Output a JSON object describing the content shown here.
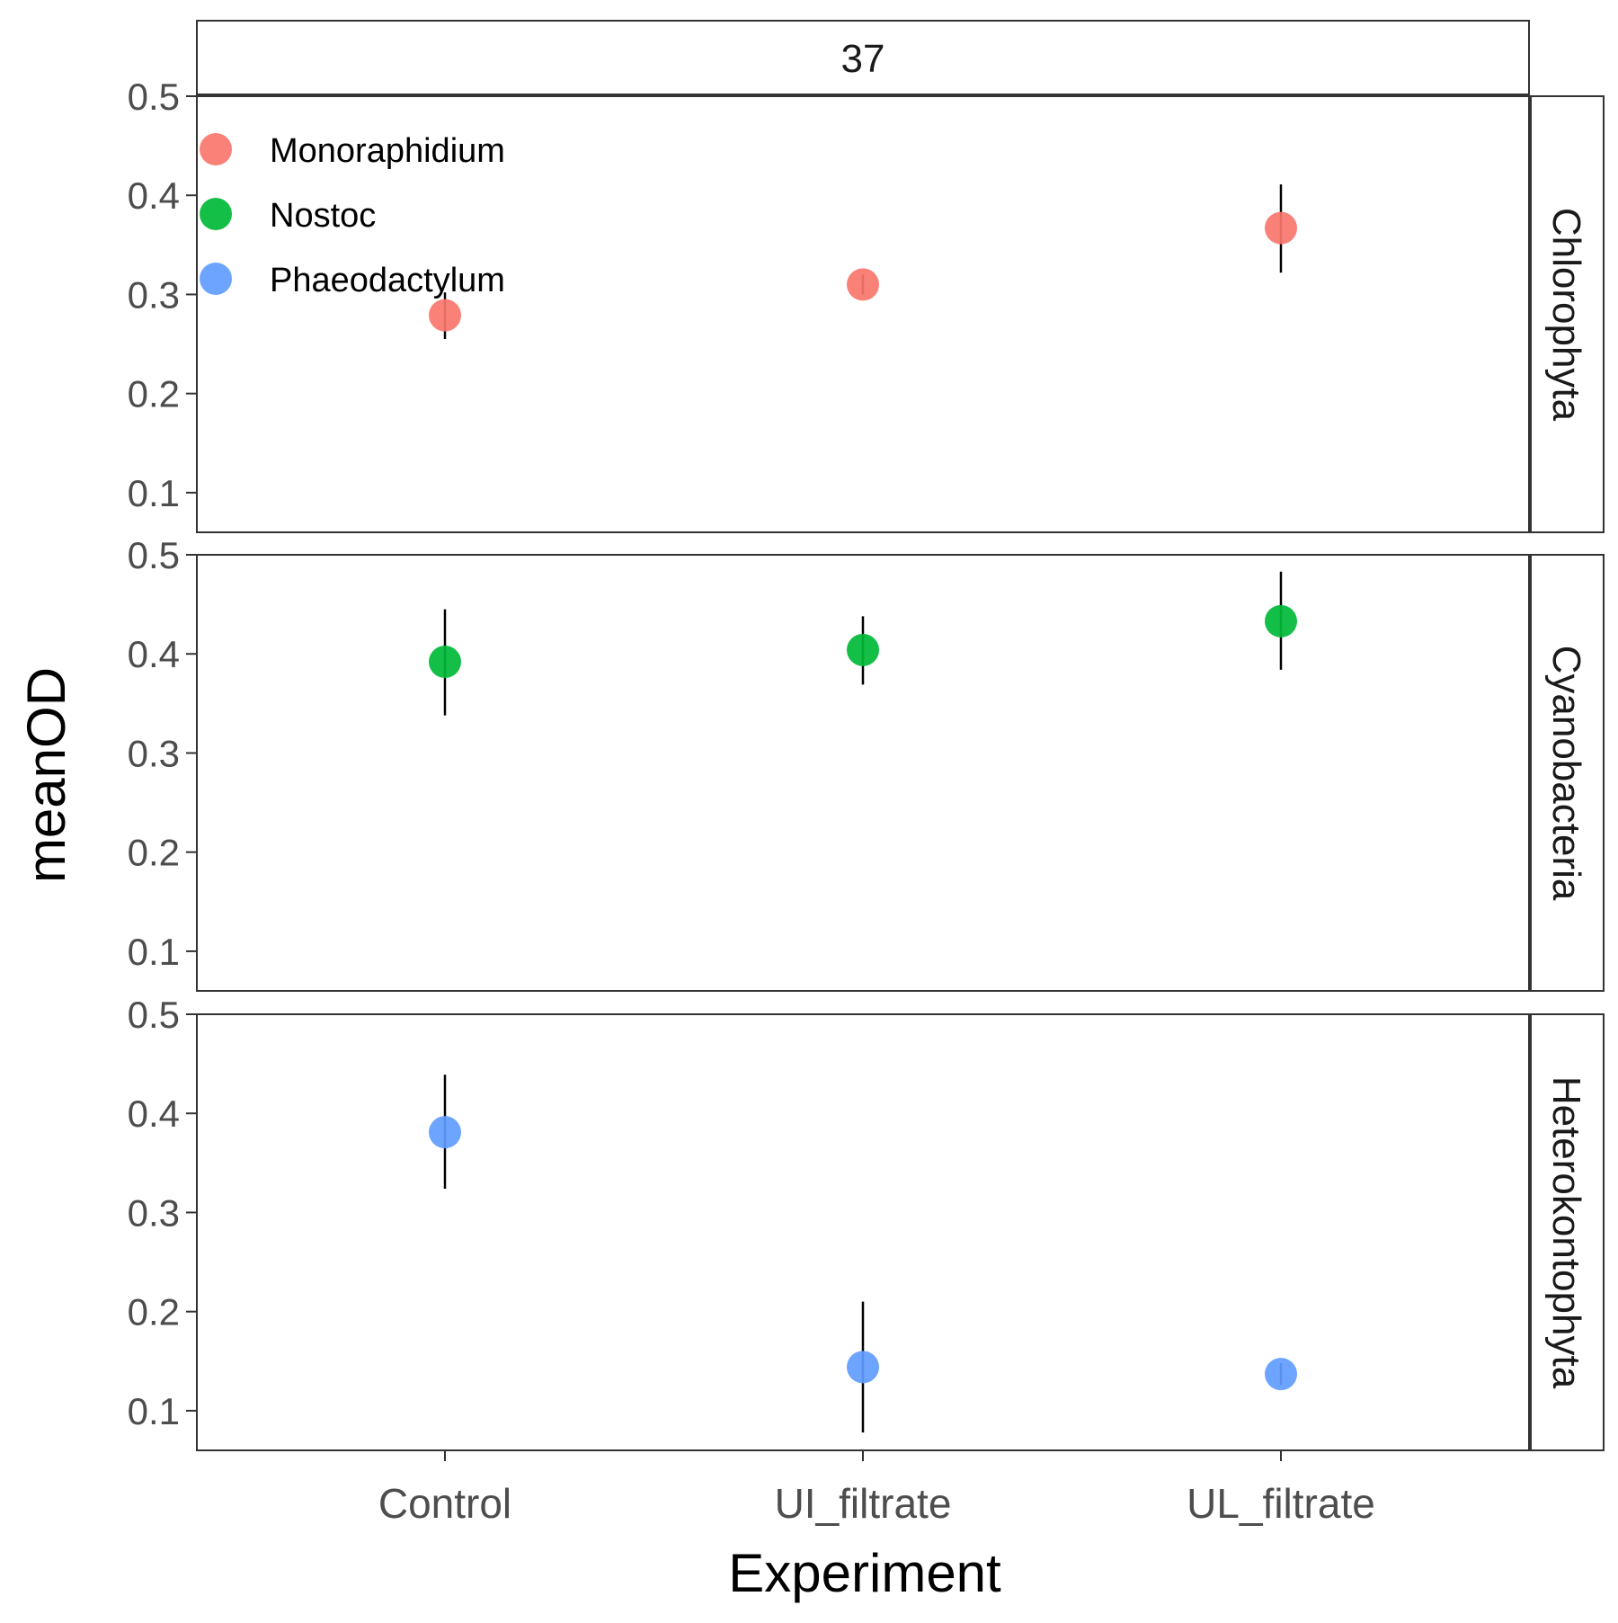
{
  "chart_data": {
    "type": "scatter",
    "title": "",
    "xlabel": "Experiment",
    "ylabel": "meanOD",
    "column_facet": "37",
    "categories": [
      "Control",
      "UI_filtrate",
      "UL_filtrate"
    ],
    "yticks": [
      "0.1",
      "0.2",
      "0.3",
      "0.4",
      "0.5"
    ],
    "ylim": [
      0.06,
      0.5
    ],
    "grid": false,
    "legend": {
      "placement": "top-left inside",
      "items": [
        {
          "name": "Monoraphidium",
          "color": "#F8766D"
        },
        {
          "name": "Nostoc",
          "color": "#00BA38"
        },
        {
          "name": "Phaeodactylum",
          "color": "#619CFF"
        }
      ]
    },
    "panels": [
      {
        "facet": "Chlorophyta",
        "series": "Monoraphidium",
        "color": "#F8766D",
        "points": [
          {
            "x": "Control",
            "y": 0.279,
            "lower": 0.255,
            "upper": 0.302
          },
          {
            "x": "UI_filtrate",
            "y": 0.31,
            "lower": 0.3,
            "upper": 0.32
          },
          {
            "x": "UL_filtrate",
            "y": 0.367,
            "lower": 0.322,
            "upper": 0.411
          }
        ]
      },
      {
        "facet": "Cyanobacteria",
        "series": "Nostoc",
        "color": "#00BA38",
        "points": [
          {
            "x": "Control",
            "y": 0.392,
            "lower": 0.338,
            "upper": 0.445
          },
          {
            "x": "UI_filtrate",
            "y": 0.404,
            "lower": 0.369,
            "upper": 0.438
          },
          {
            "x": "UL_filtrate",
            "y": 0.433,
            "lower": 0.384,
            "upper": 0.483
          }
        ]
      },
      {
        "facet": "Heterokontophyta",
        "series": "Phaeodactylum",
        "color": "#619CFF",
        "points": [
          {
            "x": "Control",
            "y": 0.381,
            "lower": 0.324,
            "upper": 0.439
          },
          {
            "x": "UI_filtrate",
            "y": 0.144,
            "lower": 0.078,
            "upper": 0.21
          },
          {
            "x": "UL_filtrate",
            "y": 0.137,
            "lower": 0.126,
            "upper": 0.148
          }
        ]
      }
    ]
  }
}
